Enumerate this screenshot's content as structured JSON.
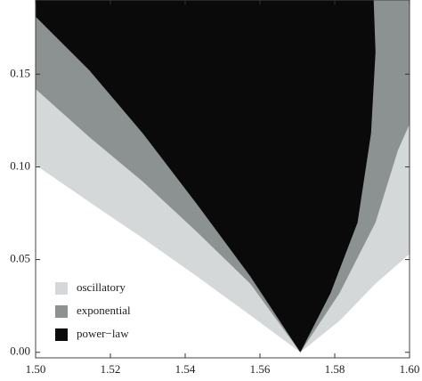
{
  "chart_data": {
    "type": "area",
    "xlim": [
      1.5,
      1.6
    ],
    "ylim": [
      -0.003,
      0.19
    ],
    "xticks": [
      {
        "value": 1.5,
        "label": "1.50"
      },
      {
        "value": 1.52,
        "label": "1.52"
      },
      {
        "value": 1.54,
        "label": "1.54"
      },
      {
        "value": 1.56,
        "label": "1.56"
      },
      {
        "value": 1.58,
        "label": "1.58"
      },
      {
        "value": 1.6,
        "label": "1.60"
      }
    ],
    "yticks": [
      {
        "value": 0,
        "label": "0.00"
      },
      {
        "value": 0.05,
        "label": "0.05"
      },
      {
        "value": 0.1,
        "label": "0.10"
      },
      {
        "value": 0.15,
        "label": "0.15"
      }
    ],
    "legend": "bottom-left",
    "series": [
      {
        "name": "oscillatory",
        "color": "#d5d8d8",
        "x": [
          1.5,
          1.5144,
          1.5287,
          1.5431,
          1.5574,
          1.5708,
          1.5813,
          1.5909,
          1.6,
          1.6,
          1.5
        ],
        "values": [
          0.101,
          0.081,
          0.0615,
          0.041,
          0.02,
          0,
          0.017,
          0.037,
          0.053,
          0.19,
          0.19
        ]
      },
      {
        "name": "exponential",
        "color": "#8c9191",
        "x": [
          1.5,
          1.5144,
          1.5287,
          1.5431,
          1.5574,
          1.5708,
          1.5813,
          1.5909,
          1.5969,
          1.6,
          1.6,
          1.5
        ],
        "values": [
          0.142,
          0.116,
          0.092,
          0.065,
          0.037,
          0,
          0.032,
          0.07,
          0.109,
          0.123,
          0.19,
          0.19
        ]
      },
      {
        "name": "power−law",
        "color": "#0a0a0a",
        "x": [
          1.5,
          1.5144,
          1.5287,
          1.5431,
          1.5574,
          1.5708,
          1.5789,
          1.5861,
          1.5897,
          1.5909,
          1.5904,
          1.5
        ],
        "values": [
          0.181,
          0.152,
          0.118,
          0.08,
          0.041,
          0,
          0.032,
          0.07,
          0.118,
          0.162,
          0.19,
          0.19
        ]
      }
    ]
  }
}
